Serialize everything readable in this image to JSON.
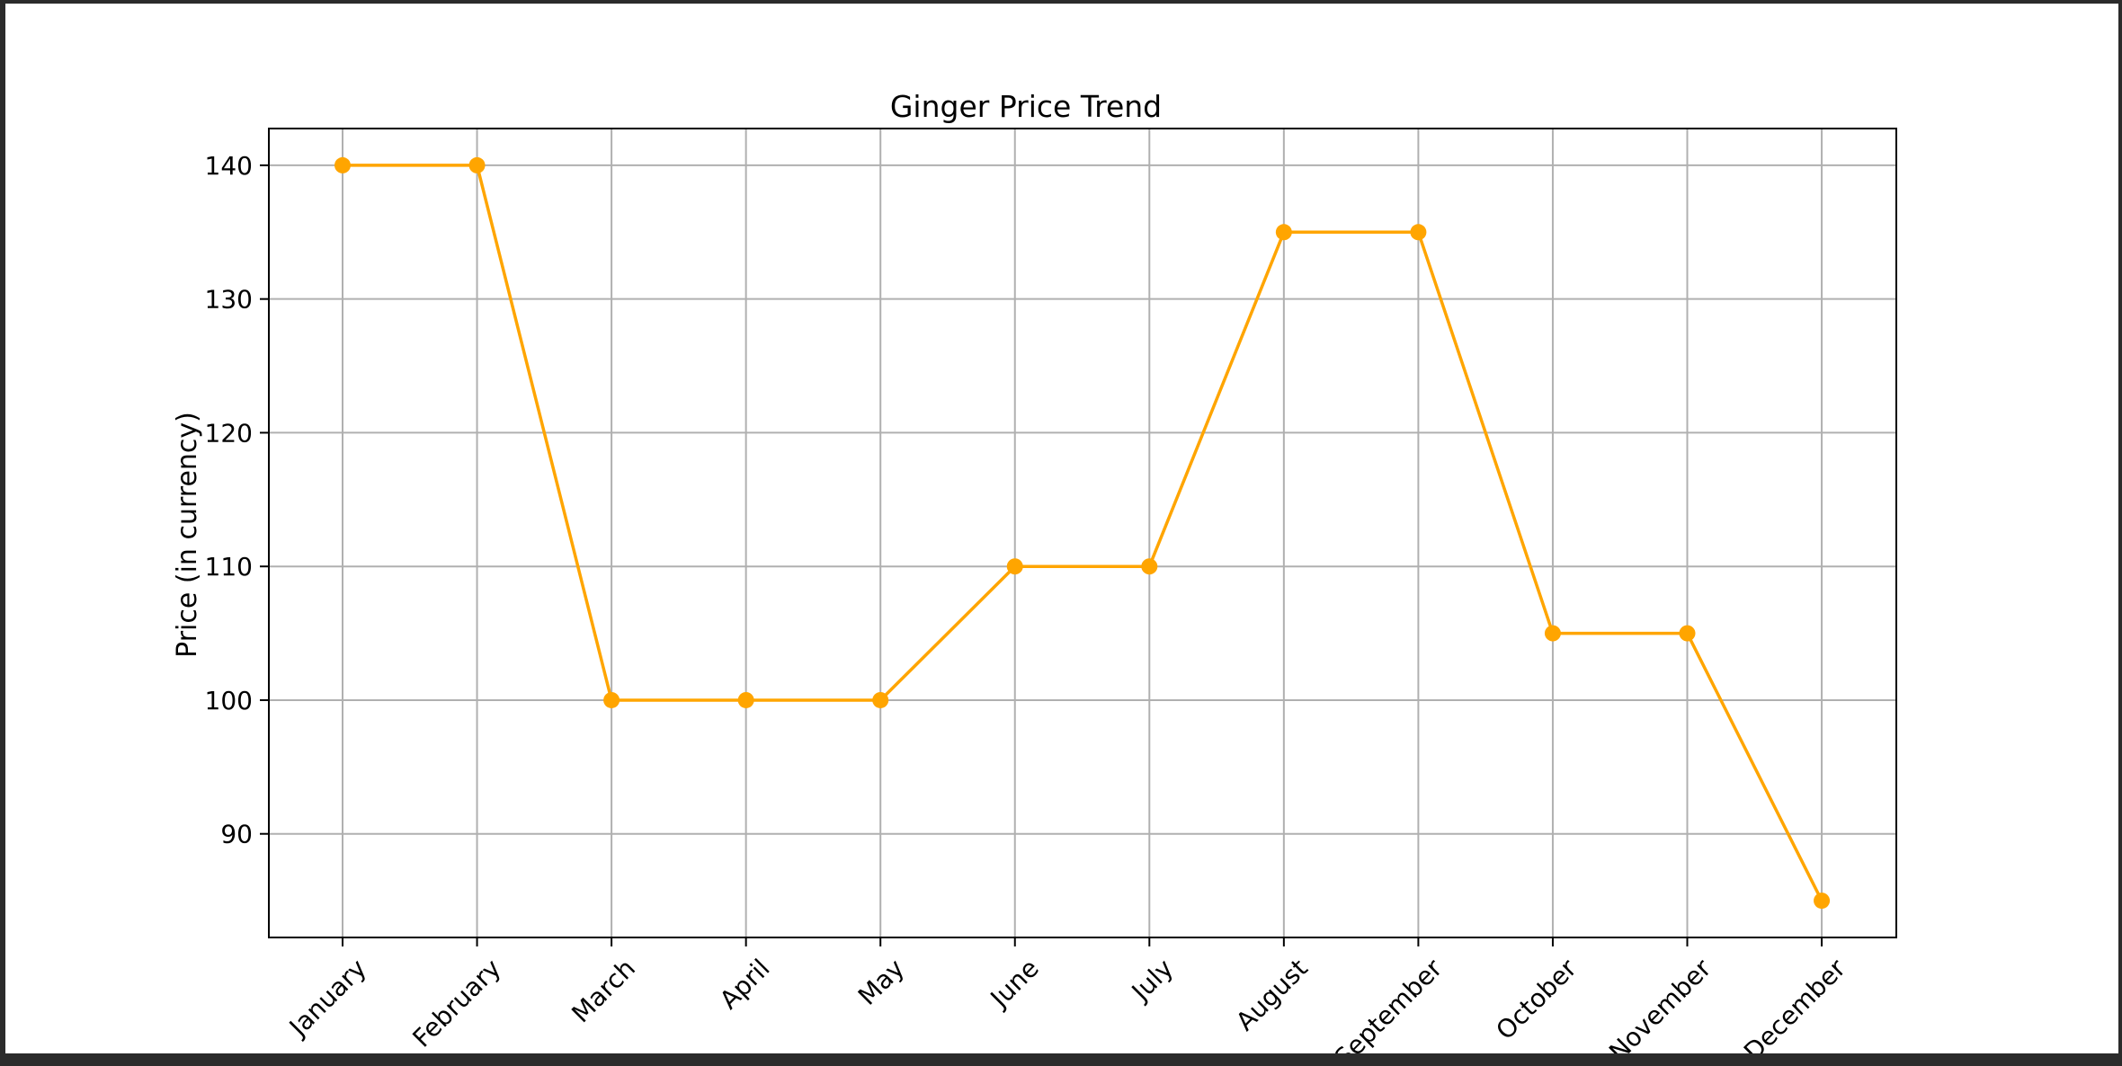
{
  "chart_data": {
    "type": "line",
    "title": "Ginger Price Trend",
    "xlabel": "",
    "ylabel": "Price (in currency)",
    "categories": [
      "January",
      "February",
      "March",
      "April",
      "May",
      "June",
      "July",
      "August",
      "September",
      "October",
      "November",
      "December"
    ],
    "series": [
      {
        "values": [
          140,
          140,
          100,
          100,
          100,
          110,
          110,
          135,
          135,
          105,
          105,
          85
        ],
        "color": "#ffa500"
      }
    ],
    "y_ticks": [
      90,
      100,
      110,
      120,
      130,
      140
    ],
    "ylim": [
      82.25,
      142.75
    ],
    "grid": true,
    "marker": "circle"
  }
}
